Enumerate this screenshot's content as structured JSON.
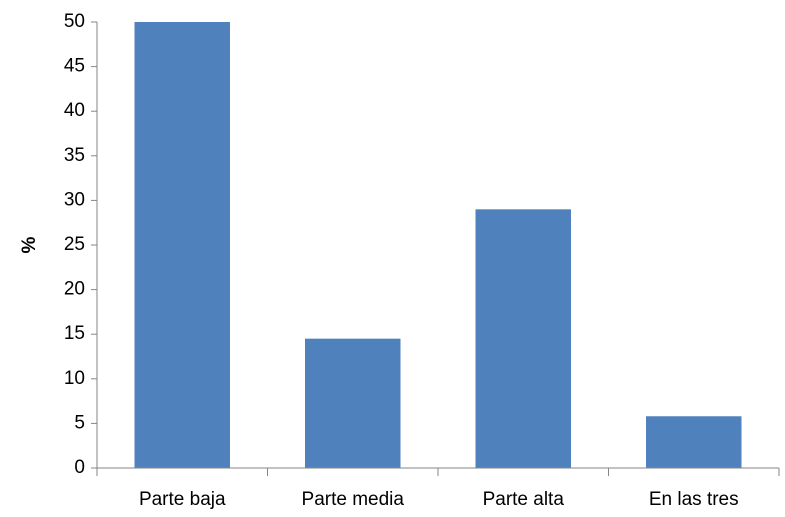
{
  "chart_data": {
    "type": "bar",
    "title": "",
    "xlabel": "",
    "ylabel": "%",
    "categories": [
      "Parte baja",
      "Parte media",
      "Parte alta",
      "En las tres"
    ],
    "values": [
      50,
      14.5,
      29,
      5.8
    ],
    "ylim": [
      0,
      50
    ],
    "yticks": [
      "0",
      "5",
      "10",
      "15",
      "20",
      "25",
      "30",
      "35",
      "40",
      "45",
      "50"
    ],
    "grid": false,
    "legend": "none",
    "bar_color": "#4f81bd"
  }
}
